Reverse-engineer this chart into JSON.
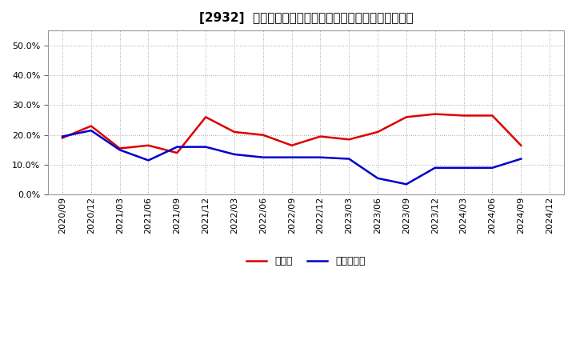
{
  "title": "[2932]  現預金、有利子負債の総資産に対する比率の推移",
  "x_labels": [
    "2020/09",
    "2020/12",
    "2021/03",
    "2021/06",
    "2021/09",
    "2021/12",
    "2022/03",
    "2022/06",
    "2022/09",
    "2022/12",
    "2023/03",
    "2023/06",
    "2023/09",
    "2023/12",
    "2024/03",
    "2024/06",
    "2024/09",
    "2024/12"
  ],
  "cash_values": [
    0.19,
    0.23,
    0.155,
    0.165,
    0.14,
    0.26,
    0.21,
    0.2,
    0.165,
    0.195,
    0.185,
    0.21,
    0.26,
    0.27,
    0.265,
    0.265,
    0.165,
    null
  ],
  "debt_values": [
    0.195,
    0.215,
    0.15,
    0.115,
    0.16,
    0.16,
    0.135,
    0.125,
    0.125,
    0.125,
    0.12,
    0.055,
    0.035,
    0.09,
    0.09,
    0.09,
    0.12,
    null
  ],
  "cash_color": "#dd0000",
  "debt_color": "#0000cc",
  "background_color": "#ffffff",
  "plot_bg_color": "#ffffff",
  "grid_color": "#aaaaaa",
  "ylim": [
    0.0,
    0.55
  ],
  "yticks": [
    0.0,
    0.1,
    0.2,
    0.3,
    0.4,
    0.5
  ],
  "legend_cash": "現預金",
  "legend_debt": "有利子負債",
  "line_width": 1.8,
  "title_fontsize": 11,
  "tick_fontsize": 8,
  "legend_fontsize": 9
}
